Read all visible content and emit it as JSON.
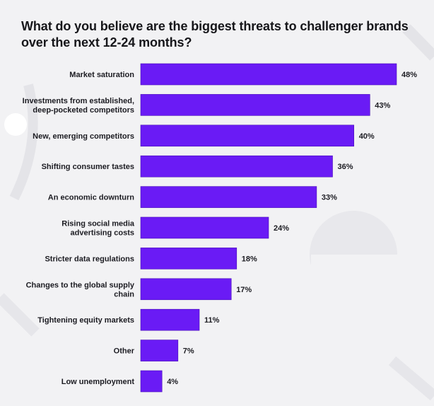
{
  "title": "What do you believe are the biggest threats to challenger brands over the next 12-24 months?",
  "colors": {
    "bar": "#6a1bf5",
    "bar_outline": "#4a10b8",
    "background": "#f2f2f4",
    "text": "#1c1c22",
    "decor": "#e6e6ea"
  },
  "chart_data": {
    "type": "bar",
    "orientation": "horizontal",
    "title": "What do you believe are the biggest threats to challenger brands over the next 12-24 months?",
    "categories": [
      [
        "Market saturation"
      ],
      [
        "Investments from established,",
        "deep-pocketed competitors"
      ],
      [
        "New, emerging competitors"
      ],
      [
        "Shifting consumer tastes"
      ],
      [
        "An economic downturn"
      ],
      [
        "Rising social media",
        "advertising costs"
      ],
      [
        "Stricter data regulations"
      ],
      [
        "Changes to the global supply",
        "chain"
      ],
      [
        "Tightening equity markets"
      ],
      [
        "Other"
      ],
      [
        "Low unemployment"
      ]
    ],
    "values": [
      48,
      43,
      40,
      36,
      33,
      24,
      18,
      17,
      11,
      7,
      4
    ],
    "value_labels": [
      "48%",
      "43%",
      "40%",
      "36%",
      "33%",
      "24%",
      "18%",
      "17%",
      "11%",
      "7%",
      "4%"
    ],
    "unit": "%",
    "xlim": [
      0,
      48
    ],
    "grid": false,
    "legend": "none"
  }
}
